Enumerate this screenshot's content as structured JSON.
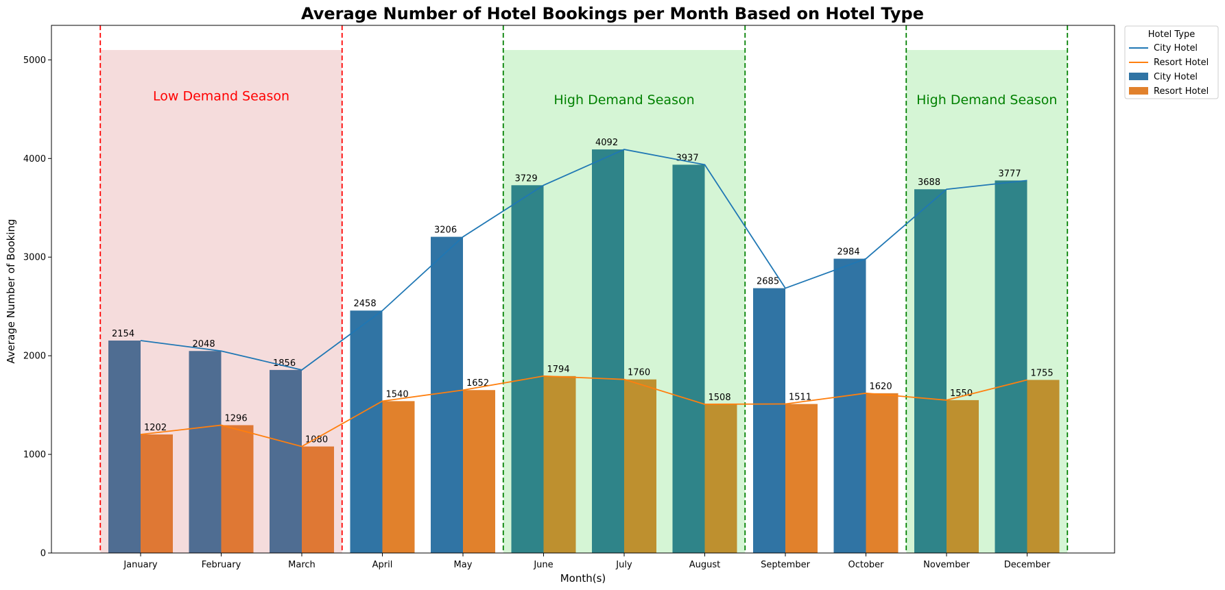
{
  "chart_data": {
    "type": "bar",
    "title": "Average Number of Hotel Bookings per Month Based on Hotel Type",
    "xlabel": "Month(s)",
    "ylabel": "Average Number of Booking",
    "categories": [
      "January",
      "February",
      "March",
      "April",
      "May",
      "June",
      "July",
      "August",
      "September",
      "October",
      "November",
      "December"
    ],
    "ylim": [
      0,
      5350
    ],
    "yticks": [
      0,
      1000,
      2000,
      3000,
      4000,
      5000
    ],
    "series": [
      {
        "name": "City Hotel",
        "values": [
          2154,
          2048,
          1856,
          2458,
          3206,
          3729,
          4092,
          3937,
          2685,
          2984,
          3688,
          3777
        ],
        "color": "#1f77b4"
      },
      {
        "name": "Resort Hotel",
        "values": [
          1202,
          1296,
          1080,
          1540,
          1652,
          1794,
          1760,
          1508,
          1511,
          1620,
          1550,
          1755
        ],
        "color": "#ff7f0e"
      }
    ],
    "line_overlay": true,
    "seasons": [
      {
        "label": "Low Demand Season",
        "start_month": "January",
        "end_month": "March",
        "fill": "#f5dcdc",
        "edge": "#ff0000",
        "text_color": "#ff0000",
        "top_value": 5100
      },
      {
        "label": "High Demand Season",
        "start_month": "June",
        "end_month": "August",
        "fill": "#d5f5d5",
        "edge": "#008000",
        "text_color": "#008000",
        "top_value": 5100
      },
      {
        "label": "High Demand Season",
        "start_month": "November",
        "end_month": "December",
        "fill": "#d5f5d5",
        "edge": "#008000",
        "text_color": "#008000",
        "top_value": 5100
      }
    ],
    "bar_colors": {
      "low": {
        "city": "#4f6d92",
        "resort": "#df7834"
      },
      "normal": {
        "city": "#3074a4",
        "resort": "#e1812c"
      },
      "high": {
        "city": "#2f8489",
        "resort": "#be902f"
      }
    },
    "legend": {
      "title": "Hotel Type",
      "position": "outside-top-right",
      "entries": [
        {
          "label": "City Hotel",
          "kind": "line",
          "color": "#1f77b4"
        },
        {
          "label": "Resort Hotel",
          "kind": "line",
          "color": "#ff7f0e"
        },
        {
          "label": "City Hotel",
          "kind": "patch",
          "color": "#3074a4"
        },
        {
          "label": "Resort Hotel",
          "kind": "patch",
          "color": "#e1812c"
        }
      ]
    },
    "grid": false
  }
}
